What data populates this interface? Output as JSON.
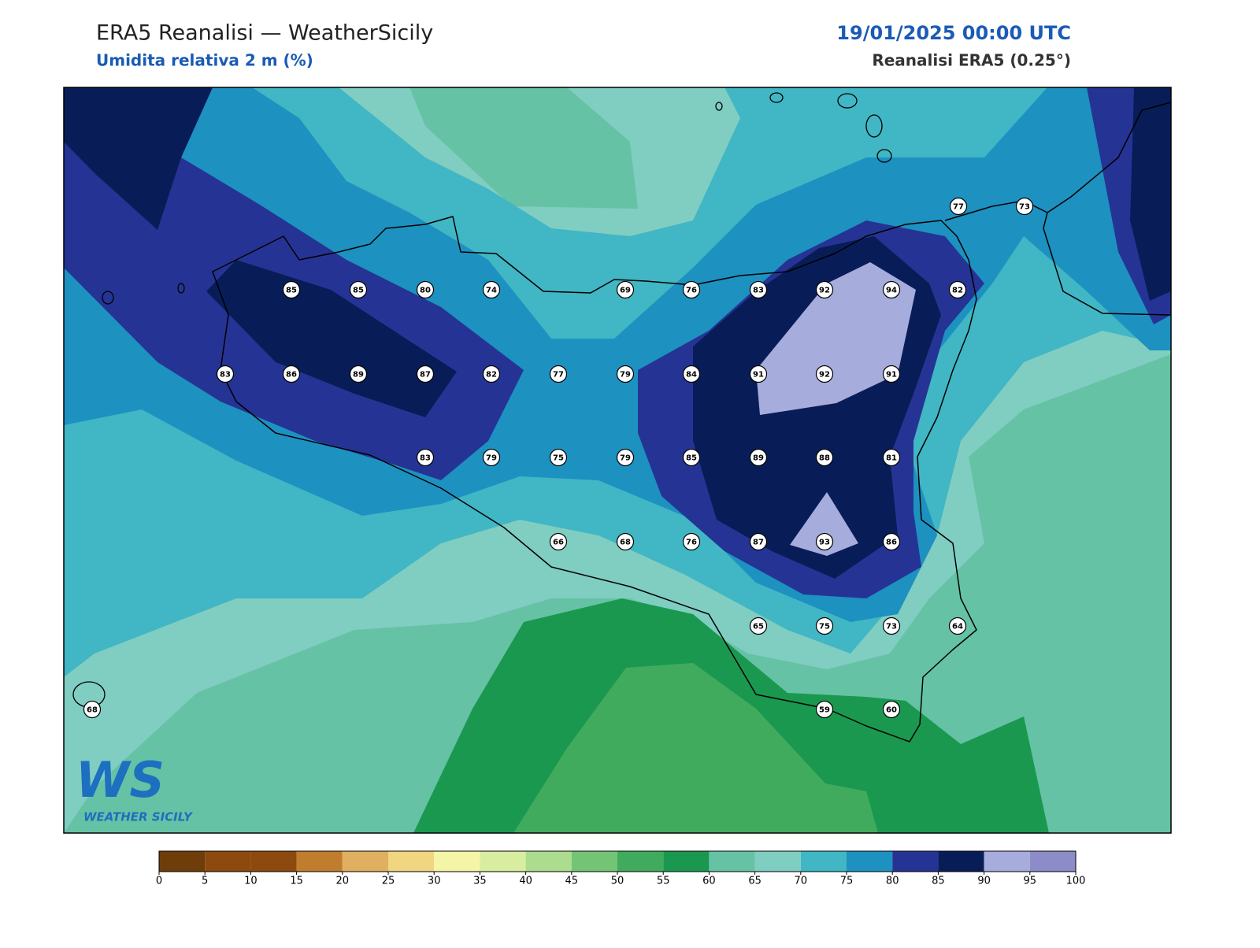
{
  "header": {
    "title": "ERA5 Reanalisi — WeatherSicily",
    "subtitle": "Umidita relativa 2 m (%)",
    "datetime": "19/01/2025 00:00 UTC",
    "source": "Reanalisi ERA5 (0.25°)"
  },
  "stations": [
    77,
    73,
    85,
    85,
    80,
    74,
    69,
    76,
    83,
    92,
    94,
    82,
    83,
    86,
    89,
    87,
    82,
    77,
    79,
    84,
    91,
    92,
    91,
    83,
    79,
    75,
    79,
    85,
    89,
    88,
    81,
    66,
    68,
    76,
    87,
    93,
    86,
    65,
    75,
    73,
    64,
    68,
    59,
    60
  ],
  "logo": {
    "mark": "WS",
    "name": "WEATHER SICILY"
  },
  "colorbar": {
    "colors": [
      "#6e3d0a",
      "#8c4a0e",
      "#8c4a0e",
      "#c07d2e",
      "#e0b060",
      "#f0d680",
      "#f5f5a8",
      "#d8eda0",
      "#acdc8e",
      "#74c476",
      "#41ab5d",
      "#1a9850",
      "#66c2a4",
      "#80cdc1",
      "#41b6c4",
      "#1d91c0",
      "#253494",
      "#081d58",
      "#a6acdc",
      "#8c8cc8"
    ],
    "ticks": [
      0,
      5,
      10,
      15,
      20,
      25,
      30,
      35,
      40,
      45,
      50,
      55,
      60,
      65,
      70,
      75,
      80,
      85,
      90,
      95,
      100
    ]
  }
}
